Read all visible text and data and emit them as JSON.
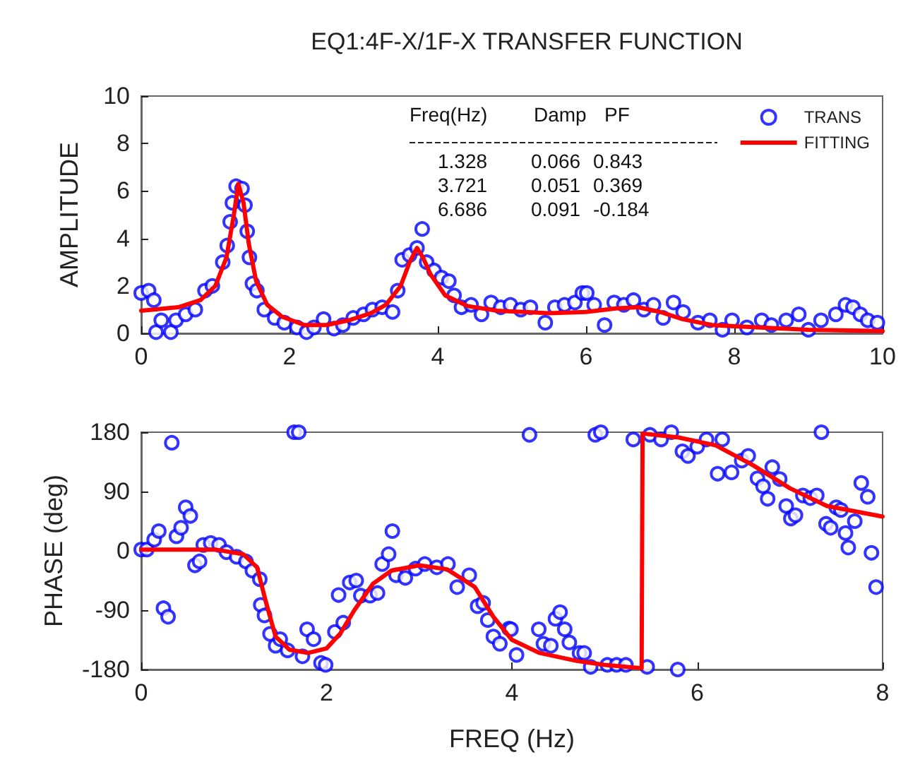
{
  "chart_data": [
    {
      "type": "scatter",
      "title": "EQ1:4F-X/1F-X TRANSFER FUNCTION",
      "ylabel": "AMPLITUDE",
      "xlim": [
        0,
        10
      ],
      "xticks": [
        0,
        2,
        4,
        6,
        8,
        10
      ],
      "ylim": [
        0,
        10
      ],
      "yticks": [
        0,
        2,
        4,
        6,
        8,
        10
      ],
      "grid": false,
      "legend": "top right",
      "annotations": [
        "Freq(Hz)",
        "Damp",
        "PF",
        "1.328",
        "0.066",
        "0.843",
        "3.721",
        "0.051",
        "0.369",
        "6.686",
        "0.091",
        "-0.184"
      ],
      "series": [
        {
          "name": "TRANS",
          "marker": "circle",
          "color": "#0000ff",
          "x": [
            0,
            0.1,
            0.17,
            0.2,
            0.27,
            0.4,
            0.47,
            0.6,
            0.73,
            0.86,
            0.96,
            1.1,
            1.16,
            1.2,
            1.23,
            1.28,
            1.36,
            1.4,
            1.43,
            1.46,
            1.5,
            1.56,
            1.66,
            1.8,
            1.93,
            2.1,
            2.23,
            2.33,
            2.46,
            2.6,
            2.72,
            2.86,
            3.0,
            3.12,
            3.25,
            3.39,
            3.46,
            3.52,
            3.62,
            3.72,
            3.79,
            3.85,
            3.95,
            4.05,
            4.15,
            4.22,
            4.32,
            4.45,
            4.59,
            4.72,
            4.85,
            4.98,
            5.12,
            5.25,
            5.45,
            5.58,
            5.71,
            5.85,
            5.95,
            6.01,
            6.11,
            6.25,
            6.38,
            6.51,
            6.64,
            6.78,
            6.91,
            7.04,
            7.18,
            7.31,
            7.51,
            7.67,
            7.84,
            7.97,
            8.17,
            8.37,
            8.5,
            8.7,
            8.87,
            9.0,
            9.17,
            9.37,
            9.5,
            9.6,
            9.7,
            9.8,
            9.93
          ],
          "values": [
            1.7,
            1.8,
            1.4,
            0.05,
            0.55,
            0.05,
            0.55,
            0.8,
            1.0,
            1.8,
            2.0,
            3.0,
            3.7,
            4.7,
            5.5,
            6.2,
            6.1,
            5.4,
            4.3,
            3.2,
            2.1,
            1.8,
            1.0,
            0.65,
            0.45,
            0.25,
            0.05,
            0.25,
            0.6,
            0.2,
            0.35,
            0.65,
            0.8,
            1.0,
            1.1,
            0.9,
            1.8,
            3.1,
            3.3,
            3.6,
            4.4,
            3.0,
            2.65,
            2.35,
            2.2,
            1.6,
            1.1,
            1.2,
            0.8,
            1.3,
            1.1,
            1.2,
            1.0,
            1.1,
            0.45,
            1.1,
            1.2,
            1.3,
            1.7,
            1.7,
            1.2,
            0.35,
            1.3,
            1.2,
            1.4,
            1.0,
            1.2,
            0.65,
            1.3,
            0.9,
            0.45,
            0.55,
            0.15,
            0.55,
            0.25,
            0.55,
            0.35,
            0.55,
            0.8,
            0.15,
            0.55,
            0.8,
            1.2,
            1.1,
            0.8,
            0.55,
            0.45
          ]
        },
        {
          "name": "FITTING",
          "type": "line",
          "marker": "none",
          "color": "#ff0000",
          "x": [
            0,
            0.5,
            0.8,
            1.0,
            1.15,
            1.25,
            1.31,
            1.38,
            1.45,
            1.55,
            1.7,
            1.9,
            2.2,
            2.5,
            2.8,
            3.1,
            3.3,
            3.5,
            3.62,
            3.72,
            3.8,
            3.9,
            4.1,
            4.4,
            4.8,
            5.5,
            6.0,
            6.4,
            6.7,
            7.0,
            7.3,
            7.7,
            8.3,
            9,
            10
          ],
          "values": [
            0.95,
            1.1,
            1.4,
            2.0,
            3.2,
            5.0,
            6.3,
            5.5,
            3.8,
            2.2,
            1.2,
            0.7,
            0.35,
            0.35,
            0.55,
            0.85,
            1.2,
            2.0,
            3.0,
            3.6,
            3.2,
            2.5,
            1.6,
            1.15,
            0.95,
            0.85,
            0.9,
            1.05,
            1.1,
            0.9,
            0.6,
            0.35,
            0.25,
            0.15,
            0.1
          ]
        }
      ]
    },
    {
      "type": "scatter",
      "xlabel": "FREQ (Hz)",
      "ylabel": "PHASE (deg)",
      "xlim": [
        0,
        8
      ],
      "xticks": [
        0,
        2,
        4,
        6,
        8
      ],
      "ylim": [
        -180,
        180
      ],
      "yticks": [
        -180,
        -90,
        0,
        90,
        180
      ],
      "grid": false,
      "series": [
        {
          "marker": "circle",
          "color": "#0000ff",
          "x": [
            0,
            0.06,
            0.14,
            0.19,
            0.24,
            0.29,
            0.33,
            0.38,
            0.43,
            0.48,
            0.53,
            0.58,
            0.63,
            0.67,
            0.75,
            0.84,
            0.92,
            1.03,
            1.13,
            1.2,
            1.28,
            1.29,
            1.33,
            1.39,
            1.45,
            1.5,
            1.58,
            1.65,
            1.7,
            1.74,
            1.79,
            1.86,
            1.94,
            1.99,
            2.09,
            2.13,
            2.18,
            2.25,
            2.32,
            2.37,
            2.47,
            2.55,
            2.6,
            2.67,
            2.71,
            2.75,
            2.85,
            2.96,
            3.06,
            3.19,
            3.31,
            3.41,
            3.54,
            3.63,
            3.69,
            3.74,
            3.8,
            3.87,
            3.97,
            3.99,
            4.05,
            4.19,
            4.29,
            4.34,
            4.42,
            4.47,
            4.52,
            4.57,
            4.62,
            4.73,
            4.78,
            4.85,
            4.9,
            4.96,
            5.03,
            5.13,
            5.23,
            5.31,
            5.46,
            5.49,
            5.61,
            5.72,
            5.79,
            5.84,
            5.9,
            6.0,
            6.1,
            6.22,
            6.27,
            6.37,
            6.48,
            6.55,
            6.65,
            6.71,
            6.76,
            6.81,
            6.89,
            6.96,
            7.01,
            7.06,
            7.14,
            7.22,
            7.29,
            7.34,
            7.39,
            7.44,
            7.5,
            7.55,
            7.6,
            7.63,
            7.7,
            7.77,
            7.84,
            7.88,
            7.93
          ],
          "values": [
            2,
            2,
            17,
            30,
            -87,
            -100,
            164,
            22,
            35,
            66,
            53,
            -22,
            -16,
            9,
            12,
            9,
            -2,
            -9,
            -16,
            -30,
            -43,
            -82,
            -98,
            -126,
            -144,
            -134,
            -151,
            180,
            180,
            -160,
            -119,
            -134,
            -170,
            -173,
            -123,
            -67,
            -109,
            -48,
            -45,
            -68,
            -68,
            -64,
            -20,
            -5,
            30,
            -37,
            -41,
            -27,
            -20,
            -25,
            -20,
            -55,
            -37,
            -84,
            -79,
            -105,
            -130,
            -141,
            -118,
            -119,
            -158,
            176,
            -119,
            -141,
            -144,
            -103,
            -93,
            -119,
            -139,
            -155,
            -155,
            -176,
            176,
            180,
            -173,
            -173,
            -173,
            169,
            -176,
            176,
            169,
            180,
            -180,
            151,
            144,
            158,
            169,
            117,
            169,
            119,
            137,
            144,
            110,
            98,
            79,
            127,
            109,
            68,
            49,
            54,
            84,
            80,
            84,
            180,
            41,
            35,
            66,
            62,
            27,
            5,
            45,
            103,
            82,
            -3,
            -55
          ]
        },
        {
          "type": "line",
          "marker": "none",
          "color": "#ff0000",
          "x": [
            0,
            0.8,
            1.1,
            1.25,
            1.35,
            1.45,
            1.6,
            1.8,
            2.0,
            2.15,
            2.3,
            2.5,
            2.7,
            3.0,
            3.3,
            3.6,
            3.8,
            4.0,
            4.3,
            4.7,
            5.0,
            5.4,
            5.41,
            5.8,
            6.2,
            6.6,
            7.0,
            7.4,
            8
          ],
          "values": [
            2,
            2,
            -5,
            -25,
            -80,
            -130,
            -150,
            -155,
            -148,
            -125,
            -90,
            -50,
            -30,
            -22,
            -28,
            -55,
            -100,
            -135,
            -155,
            -167,
            -173,
            -178,
            178,
            172,
            160,
            130,
            95,
            68,
            52
          ]
        }
      ]
    }
  ]
}
